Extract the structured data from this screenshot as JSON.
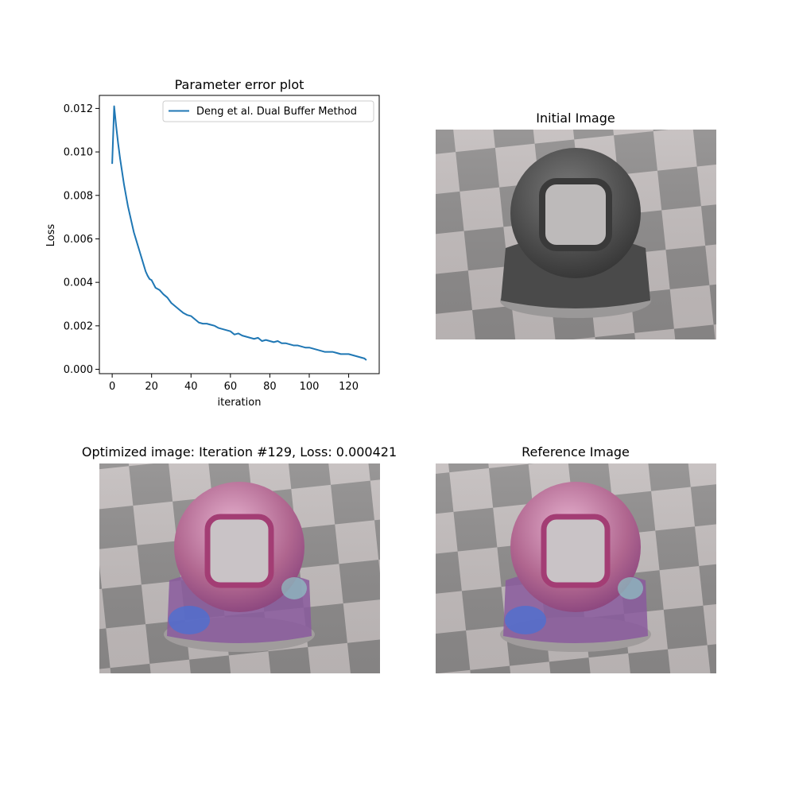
{
  "chart_data": [
    {
      "type": "line",
      "title": "Parameter error plot",
      "xlabel": "iteration",
      "ylabel": "Loss",
      "xlim": [
        -6.5,
        135.5
      ],
      "ylim": [
        -0.0002,
        0.0126
      ],
      "xticks": [
        0,
        20,
        40,
        60,
        80,
        100,
        120
      ],
      "xtick_labels": [
        "0",
        "20",
        "40",
        "60",
        "80",
        "100",
        "120"
      ],
      "yticks": [
        0,
        0.002,
        0.004,
        0.006,
        0.008,
        0.01,
        0.012
      ],
      "ytick_labels": [
        "0.000",
        "0.002",
        "0.004",
        "0.006",
        "0.008",
        "0.010",
        "0.012"
      ],
      "grid": false,
      "legend_position": "top-right",
      "series": [
        {
          "name": "Deng et al. Dual Buffer Method",
          "color": "#1f77b4",
          "x": [
            0,
            1,
            2,
            3,
            4,
            5,
            6,
            7,
            8,
            9,
            10,
            11,
            12,
            13,
            14,
            15,
            16,
            17,
            18,
            19,
            20,
            22,
            24,
            26,
            28,
            30,
            32,
            34,
            36,
            38,
            40,
            42,
            44,
            46,
            48,
            50,
            52,
            54,
            56,
            58,
            60,
            62,
            64,
            66,
            68,
            70,
            72,
            74,
            76,
            78,
            80,
            82,
            84,
            86,
            88,
            90,
            92,
            94,
            96,
            98,
            100,
            102,
            104,
            106,
            108,
            110,
            112,
            114,
            116,
            118,
            120,
            122,
            124,
            126,
            128,
            129
          ],
          "y": [
            0.00945,
            0.0121,
            0.0112,
            0.0104,
            0.0097,
            0.0091,
            0.0085,
            0.008,
            0.0075,
            0.0071,
            0.0067,
            0.0063,
            0.006,
            0.0057,
            0.0054,
            0.0051,
            0.0048,
            0.0045,
            0.0043,
            0.00415,
            0.0041,
            0.00375,
            0.00365,
            0.00345,
            0.0033,
            0.00305,
            0.0029,
            0.00275,
            0.0026,
            0.0025,
            0.00245,
            0.0023,
            0.00215,
            0.0021,
            0.0021,
            0.00205,
            0.002,
            0.0019,
            0.00185,
            0.0018,
            0.00175,
            0.0016,
            0.00165,
            0.00155,
            0.0015,
            0.00145,
            0.0014,
            0.00145,
            0.0013,
            0.00135,
            0.0013,
            0.00125,
            0.0013,
            0.0012,
            0.0012,
            0.00115,
            0.0011,
            0.0011,
            0.00105,
            0.001,
            0.001,
            0.00095,
            0.0009,
            0.00085,
            0.0008,
            0.0008,
            0.0008,
            0.00075,
            0.0007,
            0.0007,
            0.0007,
            0.00065,
            0.0006,
            0.00055,
            0.0005,
            0.000421
          ]
        }
      ]
    }
  ],
  "panels": {
    "initial": {
      "title": "Initial Image",
      "shell_color": "#5c5c5c"
    },
    "optimized": {
      "title": "Optimized image: Iteration #129, Loss: 0.000421",
      "shell_color": "#b0668f"
    },
    "reference": {
      "title": "Reference Image",
      "shell_color": "#b0668f"
    }
  }
}
